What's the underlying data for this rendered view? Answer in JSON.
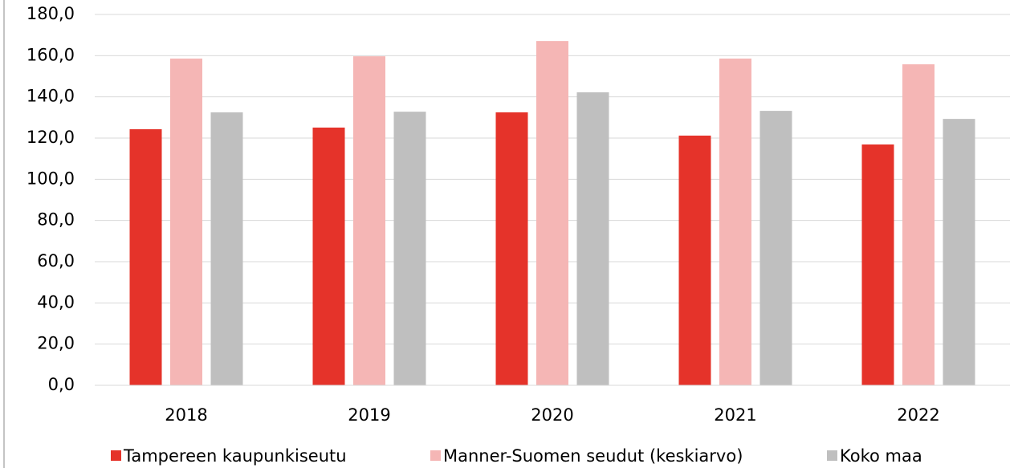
{
  "chart_data": {
    "type": "bar",
    "categories": [
      "2018",
      "2019",
      "2020",
      "2021",
      "2022"
    ],
    "series": [
      {
        "name": "Tampereen kaupunkiseutu",
        "color": "#e5332a",
        "values": [
          124.3,
          125.1,
          132.5,
          121.2,
          116.9
        ]
      },
      {
        "name": "Manner-Suomen seudut (keskiarvo)",
        "color": "#f5b6b5",
        "values": [
          158.6,
          159.7,
          167.1,
          158.6,
          155.8
        ]
      },
      {
        "name": "Koko maa",
        "color": "#bfbfbf",
        "values": [
          132.5,
          132.8,
          142.2,
          133.2,
          129.3
        ]
      }
    ],
    "ylim": [
      0,
      180
    ],
    "yticks": [
      {
        "value": 0,
        "label": "0,0"
      },
      {
        "value": 20,
        "label": "20,0"
      },
      {
        "value": 40,
        "label": "40,0"
      },
      {
        "value": 60,
        "label": "60,0"
      },
      {
        "value": 80,
        "label": "80,0"
      },
      {
        "value": 100,
        "label": "100,0"
      },
      {
        "value": 120,
        "label": "120,0"
      },
      {
        "value": 140,
        "label": "140,0"
      },
      {
        "value": 160,
        "label": "160,0"
      },
      {
        "value": 180,
        "label": "180,0"
      }
    ],
    "grid": true
  }
}
